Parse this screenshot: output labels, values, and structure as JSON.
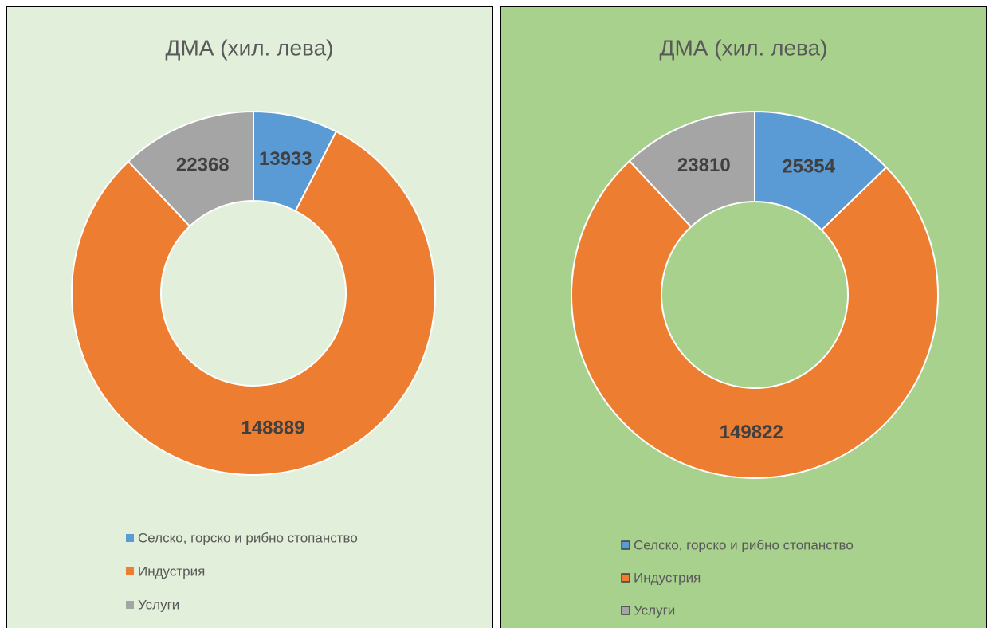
{
  "chart_data": [
    {
      "type": "doughnut",
      "title": "ДМА (хил. лева)",
      "categories": [
        "Селско, горско и рибно стопанство",
        "Индустрия",
        "Услуги"
      ],
      "values": [
        13933,
        148889,
        22368
      ],
      "colors": [
        "#5b9bd5",
        "#ed7d31",
        "#a5a5a5"
      ],
      "background": "#e2efda"
    },
    {
      "type": "doughnut",
      "title": "ДМА (хил. лева)",
      "categories": [
        "Селско, горско и рибно стопанство",
        "Индустрия",
        "Услуги"
      ],
      "values": [
        25354,
        149822,
        23810
      ],
      "colors": [
        "#5b9bd5",
        "#ed7d31",
        "#a5a5a5"
      ],
      "background": "#a9d18e"
    }
  ]
}
